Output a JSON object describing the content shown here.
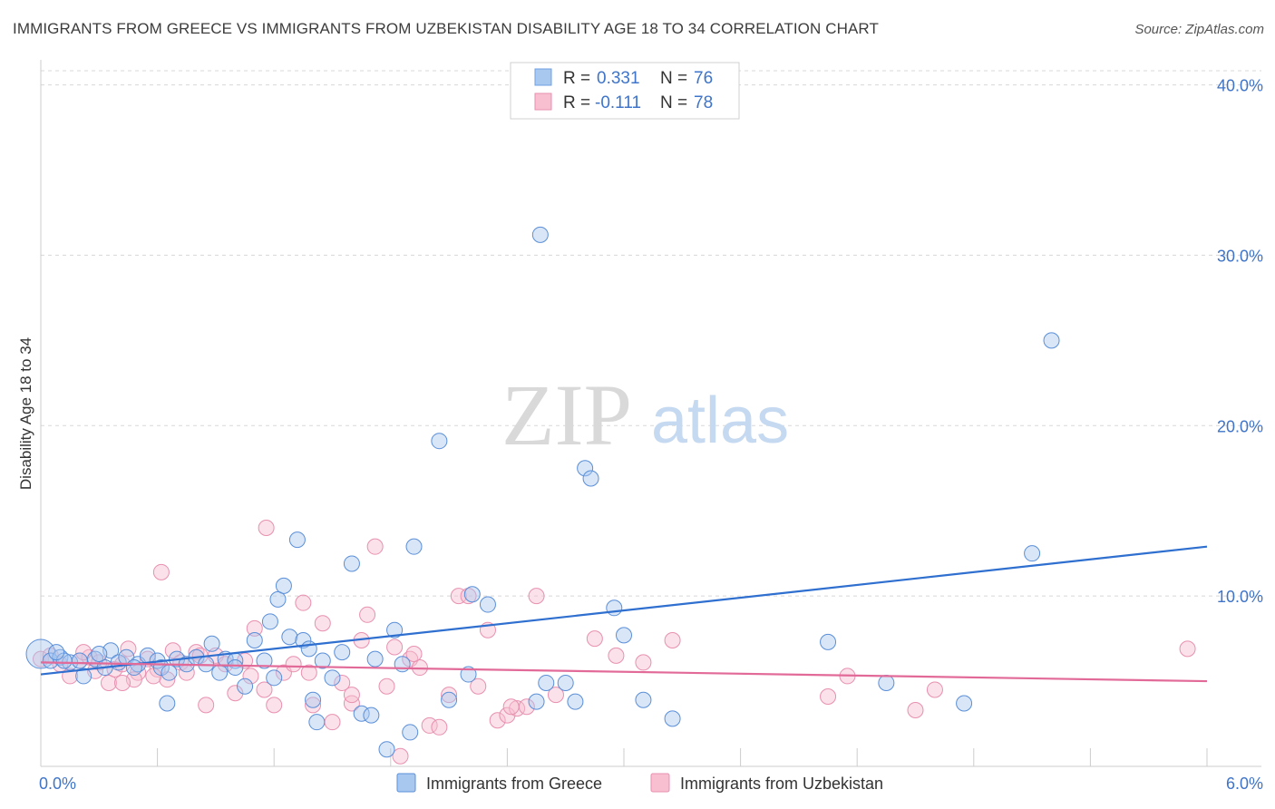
{
  "title": "IMMIGRANTS FROM GREECE VS IMMIGRANTS FROM UZBEKISTAN DISABILITY AGE 18 TO 34 CORRELATION CHART",
  "source": "Source: ZipAtlas.com",
  "watermark": {
    "zip": "ZIP",
    "atlas": "atlas"
  },
  "legend": {
    "r_label": "R =",
    "n_label": "N =",
    "rows": [
      {
        "r": "0.331",
        "n": "76",
        "color": "#a9c8f0",
        "stroke": "#6f9fe0"
      },
      {
        "r": "-0.111",
        "n": "78",
        "color": "#f7bfd0",
        "stroke": "#ea8fb0"
      }
    ]
  },
  "colors": {
    "greece_fill": "#a9c8f0",
    "greece_stroke": "#5b8fd8",
    "greece_line": "#2f6fcf",
    "uzbekistan_fill": "#f7bfd0",
    "uzbekistan_stroke": "#e890b0",
    "uzbekistan_line": "#e26a98",
    "tick_label": "#3f74c8",
    "grid": "#d8d8d8"
  },
  "chart_data": {
    "type": "scatter",
    "title": "IMMIGRANTS FROM GREECE VS IMMIGRANTS FROM UZBEKISTAN DISABILITY AGE 18 TO 34 CORRELATION CHART",
    "xlabel": "",
    "ylabel": "Disability Age 18 to 34",
    "xlim": [
      0,
      6
    ],
    "ylim": [
      0,
      42
    ],
    "x_tick_labels": [
      "0.0%",
      "6.0%"
    ],
    "y_ticks": [
      10,
      20,
      30,
      40
    ],
    "y_tick_labels": [
      "10.0%",
      "20.0%",
      "30.0%",
      "40.0%"
    ],
    "grid": true,
    "legend_position": "top-center",
    "series": [
      {
        "name": "Immigrants from Greece",
        "trend": {
          "x": [
            0,
            6
          ],
          "y": [
            5.4,
            12.9
          ]
        },
        "points": [
          [
            0.0,
            6.6
          ],
          [
            0.05,
            6.2
          ],
          [
            0.1,
            6.4
          ],
          [
            0.15,
            6.1
          ],
          [
            0.22,
            5.3
          ],
          [
            0.28,
            6.3
          ],
          [
            0.33,
            5.8
          ],
          [
            0.36,
            6.8
          ],
          [
            0.4,
            6.1
          ],
          [
            0.44,
            6.4
          ],
          [
            0.5,
            6.0
          ],
          [
            0.55,
            6.5
          ],
          [
            0.6,
            6.2
          ],
          [
            0.62,
            5.8
          ],
          [
            0.66,
            5.5
          ],
          [
            0.7,
            6.3
          ],
          [
            0.75,
            6.0
          ],
          [
            0.8,
            6.4
          ],
          [
            0.85,
            6.0
          ],
          [
            0.88,
            7.2
          ],
          [
            0.92,
            5.5
          ],
          [
            0.95,
            6.3
          ],
          [
            1.0,
            6.2
          ],
          [
            1.05,
            4.7
          ],
          [
            1.1,
            7.4
          ],
          [
            1.15,
            6.2
          ],
          [
            1.18,
            8.5
          ],
          [
            1.22,
            9.8
          ],
          [
            1.25,
            10.6
          ],
          [
            1.28,
            7.6
          ],
          [
            1.32,
            13.3
          ],
          [
            1.35,
            7.4
          ],
          [
            1.38,
            6.9
          ],
          [
            1.45,
            6.2
          ],
          [
            1.5,
            5.2
          ],
          [
            1.55,
            6.7
          ],
          [
            1.6,
            11.9
          ],
          [
            1.65,
            3.1
          ],
          [
            1.7,
            3.0
          ],
          [
            1.72,
            6.3
          ],
          [
            1.78,
            1.0
          ],
          [
            1.82,
            8.0
          ],
          [
            1.86,
            6.0
          ],
          [
            1.9,
            2.0
          ],
          [
            1.92,
            12.9
          ],
          [
            2.05,
            19.1
          ],
          [
            2.1,
            3.9
          ],
          [
            2.2,
            5.4
          ],
          [
            2.22,
            10.1
          ],
          [
            2.3,
            9.5
          ],
          [
            2.57,
            31.2
          ],
          [
            2.7,
            4.9
          ],
          [
            2.75,
            3.8
          ],
          [
            2.8,
            17.5
          ],
          [
            2.83,
            16.9
          ],
          [
            2.95,
            9.3
          ],
          [
            3.0,
            7.7
          ],
          [
            3.1,
            3.9
          ],
          [
            3.25,
            2.8
          ],
          [
            4.05,
            7.3
          ],
          [
            4.35,
            4.9
          ],
          [
            4.75,
            3.7
          ],
          [
            5.1,
            12.5
          ],
          [
            5.2,
            25.0
          ],
          [
            1.2,
            5.2
          ],
          [
            0.65,
            3.7
          ],
          [
            1.4,
            3.9
          ],
          [
            2.6,
            4.9
          ],
          [
            1.0,
            5.8
          ],
          [
            0.3,
            6.6
          ],
          [
            0.48,
            5.8
          ],
          [
            0.2,
            6.2
          ],
          [
            0.12,
            6.2
          ],
          [
            0.08,
            6.7
          ],
          [
            1.42,
            2.6
          ],
          [
            2.55,
            3.8
          ]
        ]
      },
      {
        "name": "Immigrants from Uzbekistan",
        "trend": {
          "x": [
            0,
            6
          ],
          "y": [
            6.1,
            5.0
          ]
        },
        "points": [
          [
            0.0,
            6.3
          ],
          [
            0.05,
            6.5
          ],
          [
            0.1,
            6.0
          ],
          [
            0.15,
            5.3
          ],
          [
            0.2,
            6.2
          ],
          [
            0.25,
            6.4
          ],
          [
            0.3,
            6.1
          ],
          [
            0.35,
            4.9
          ],
          [
            0.38,
            5.7
          ],
          [
            0.42,
            6.0
          ],
          [
            0.45,
            6.9
          ],
          [
            0.5,
            5.5
          ],
          [
            0.55,
            6.3
          ],
          [
            0.6,
            5.7
          ],
          [
            0.62,
            11.4
          ],
          [
            0.65,
            5.1
          ],
          [
            0.68,
            6.8
          ],
          [
            0.72,
            6.1
          ],
          [
            0.75,
            5.5
          ],
          [
            0.8,
            6.7
          ],
          [
            0.85,
            3.6
          ],
          [
            0.9,
            6.5
          ],
          [
            0.95,
            6.0
          ],
          [
            1.0,
            4.3
          ],
          [
            1.05,
            6.2
          ],
          [
            1.1,
            8.1
          ],
          [
            1.15,
            4.5
          ],
          [
            1.16,
            14.0
          ],
          [
            1.2,
            3.6
          ],
          [
            1.25,
            5.5
          ],
          [
            1.3,
            6.0
          ],
          [
            1.35,
            9.6
          ],
          [
            1.4,
            3.6
          ],
          [
            1.45,
            8.4
          ],
          [
            1.5,
            2.6
          ],
          [
            1.55,
            4.9
          ],
          [
            1.6,
            3.7
          ],
          [
            1.65,
            7.4
          ],
          [
            1.68,
            8.9
          ],
          [
            1.72,
            12.9
          ],
          [
            1.78,
            4.7
          ],
          [
            1.82,
            7.0
          ],
          [
            1.85,
            0.6
          ],
          [
            1.9,
            6.3
          ],
          [
            1.95,
            5.8
          ],
          [
            2.0,
            2.4
          ],
          [
            2.05,
            2.3
          ],
          [
            2.1,
            4.2
          ],
          [
            2.15,
            10.0
          ],
          [
            2.25,
            4.7
          ],
          [
            2.3,
            8.0
          ],
          [
            2.35,
            2.7
          ],
          [
            2.4,
            3.0
          ],
          [
            2.45,
            3.4
          ],
          [
            2.5,
            3.5
          ],
          [
            2.55,
            10.0
          ],
          [
            2.65,
            4.2
          ],
          [
            2.85,
            7.5
          ],
          [
            2.96,
            6.5
          ],
          [
            3.1,
            6.1
          ],
          [
            3.25,
            7.4
          ],
          [
            4.05,
            4.1
          ],
          [
            4.15,
            5.3
          ],
          [
            4.5,
            3.3
          ],
          [
            4.6,
            4.5
          ],
          [
            5.9,
            6.9
          ],
          [
            0.22,
            6.7
          ],
          [
            0.48,
            5.1
          ],
          [
            0.58,
            5.3
          ],
          [
            0.82,
            6.5
          ],
          [
            1.08,
            5.3
          ],
          [
            1.38,
            5.5
          ],
          [
            1.92,
            6.6
          ],
          [
            2.2,
            10.0
          ],
          [
            0.42,
            4.9
          ],
          [
            0.28,
            5.6
          ],
          [
            1.6,
            4.2
          ],
          [
            2.42,
            3.5
          ]
        ]
      }
    ]
  },
  "bottom_legend": [
    {
      "label": "Immigrants from Greece"
    },
    {
      "label": "Immigrants from Uzbekistan"
    }
  ]
}
